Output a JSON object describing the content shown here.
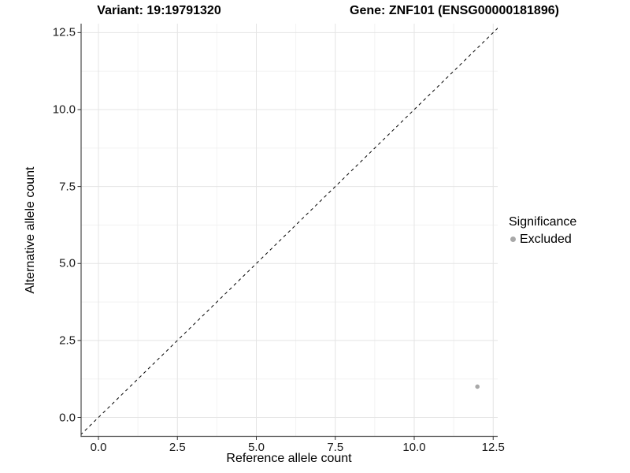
{
  "chart_data": {
    "type": "scatter",
    "title_left": "Variant: 19:19791320",
    "title_right": "Gene: ZNF101 (ENSG00000181896)",
    "xlabel": "Reference allele count",
    "ylabel": "Alternative allele count",
    "xlim": [
      -0.55,
      12.65
    ],
    "ylim": [
      -0.62,
      12.79
    ],
    "x_major_ticks": [
      0,
      2.5,
      5,
      7.5,
      10,
      12.5
    ],
    "y_major_ticks": [
      0,
      2.5,
      5,
      7.5,
      10,
      12.5
    ],
    "x_tick_labels": [
      "0.0",
      "2.5",
      "5.0",
      "7.5",
      "10.0",
      "12.5"
    ],
    "y_tick_labels": [
      "0.0",
      "2.5",
      "5.0",
      "7.5",
      "10.0",
      "12.5"
    ],
    "grid": {
      "major": true,
      "minor": true
    },
    "identity_line": {
      "style": "dashed",
      "slope": 1,
      "intercept": 0,
      "color": "#000000"
    },
    "series": [
      {
        "name": "Excluded",
        "color": "#a8a8a8",
        "points": [
          {
            "x": 12,
            "y": 1
          }
        ]
      }
    ],
    "legend": {
      "position": "right",
      "title": "Significance",
      "entries": [
        {
          "label": "Excluded",
          "color": "#a8a8a8"
        }
      ]
    },
    "colors": {
      "grid_major": "#e4e4e4",
      "grid_minor": "#f2f2f2",
      "axis_line": "#4a4a4a",
      "tick_mark": "#333333"
    }
  }
}
